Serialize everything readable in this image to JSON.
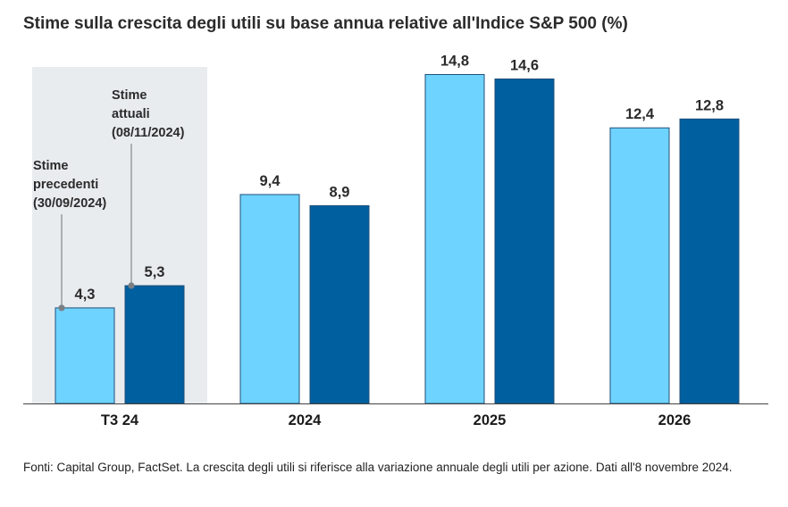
{
  "chart_data": {
    "type": "bar",
    "title": "Stime sulla crescita degli utili su base annua relative all'Indice S&P 500 (%)",
    "categories": [
      "T3 24",
      "2024",
      "2025",
      "2026"
    ],
    "series": [
      {
        "name": "Stime precedenti (30/09/2024)",
        "values": [
          4.3,
          9.4,
          14.8,
          12.4
        ],
        "labels": [
          "4,3",
          "9,4",
          "14,8",
          "12,4"
        ],
        "color": "#6fd3ff"
      },
      {
        "name": "Stime attuali (08/11/2024)",
        "values": [
          5.3,
          8.9,
          14.6,
          12.8
        ],
        "labels": [
          "5,3",
          "8,9",
          "14,6",
          "12,8"
        ],
        "color": "#005f9e"
      }
    ],
    "ylim": [
      0,
      16
    ],
    "grid": false,
    "highlight_category": "T3 24",
    "highlight_color": "#e9ecef",
    "annotations": {
      "previous": [
        "Stime",
        "precedenti",
        "(30/09/2024)"
      ],
      "current": [
        "Stime",
        "attuali",
        "(08/11/2024)"
      ]
    }
  },
  "source": "Fonti: Capital Group, FactSet. La crescita degli utili si riferisce alla variazione annuale degli utili per azione. Dati all'8 novembre 2024."
}
